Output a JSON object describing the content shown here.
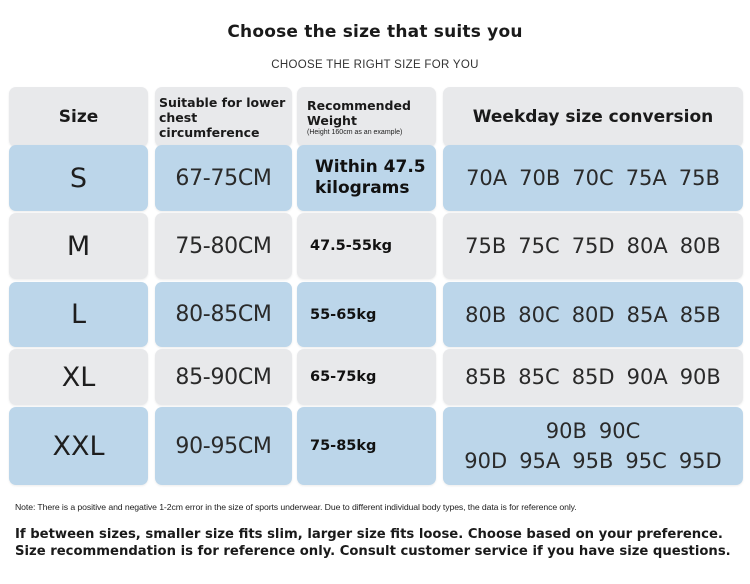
{
  "title": "Choose the size that suits you",
  "subtitle": "CHOOSE THE RIGHT SIZE FOR YOU",
  "header": {
    "size": "Size",
    "chest": "Suitable for lower chest circumference",
    "weight": "Recommended Weight",
    "weight_note": "(Height 160cm as an example)",
    "conversion": "Weekday size conversion"
  },
  "colors": {
    "light_blue": "#bcd6ea",
    "light_gray": "#e8e9eb",
    "header_gray": "#e8e9eb"
  },
  "rows": [
    {
      "size": "S",
      "chest": "67-75CM",
      "weight": "Within 47.5 kilograms",
      "conv": [
        "70A",
        "70B",
        "70C",
        "75A",
        "75B"
      ]
    },
    {
      "size": "M",
      "chest": "75-80CM",
      "weight": "47.5-55kg",
      "conv": [
        "75B",
        "75C",
        "75D",
        "80A",
        "80B"
      ]
    },
    {
      "size": "L",
      "chest": "80-85CM",
      "weight": "55-65kg",
      "conv": [
        "80B",
        "80C",
        "80D",
        "85A",
        "85B"
      ]
    },
    {
      "size": "XL",
      "chest": "85-90CM",
      "weight": "65-75kg",
      "conv": [
        "85B",
        "85C",
        "85D",
        "90A",
        "90B"
      ]
    },
    {
      "size": "XXL",
      "chest": "90-95CM",
      "weight": "75-85kg",
      "conv": [
        "90B",
        "90C",
        "90D",
        "95A",
        "95B",
        "95C",
        "95D"
      ]
    }
  ],
  "note": "Note: There is a positive and negative 1-2cm error in the size of sports underwear. Due to different individual body types, the data is for reference only.",
  "footer": "If between sizes, smaller size fits slim, larger size fits loose. Choose based on your preference. Size recommendation is for reference only. Consult customer service if you have size questions."
}
